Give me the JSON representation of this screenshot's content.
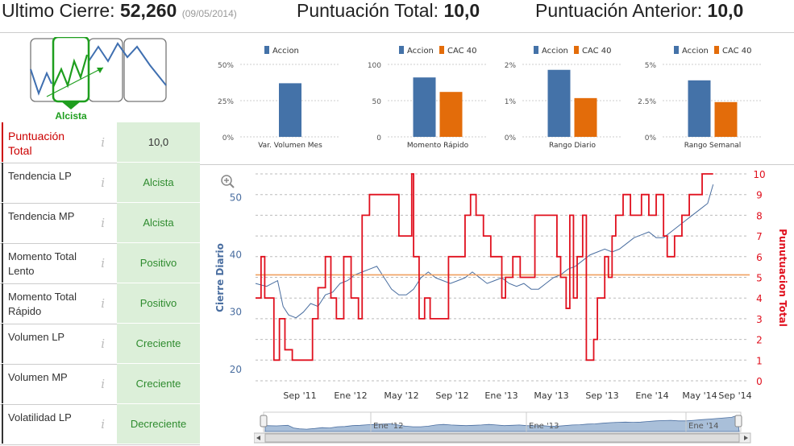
{
  "header": {
    "last_close_label": "Ultimo Cierre:",
    "last_close_value": "52,260",
    "last_close_date": "(09/05/2014)",
    "total_label": "Puntuación Total:",
    "total_value": "10,0",
    "prev_label": "Puntuación Anterior:",
    "prev_value": "10,0"
  },
  "trend_indicator": {
    "label": "Alcista",
    "color": "#1e9e1e"
  },
  "table": [
    {
      "label": "Puntuación Total",
      "value": "10,0"
    },
    {
      "label": "Tendencia LP",
      "value": "Alcista"
    },
    {
      "label": "Tendencia MP",
      "value": "Alcista"
    },
    {
      "label": "Momento Total Lento",
      "value": "Positivo"
    },
    {
      "label": "Momento Total Rápido",
      "value": "Positivo"
    },
    {
      "label": "Volumen LP",
      "value": "Creciente"
    },
    {
      "label": "Volumen MP",
      "value": "Creciente"
    },
    {
      "label": "Volatilidad LP",
      "value": "Decreciente"
    }
  ],
  "info_icon": "i",
  "colors": {
    "accion": "#4472a8",
    "cac40": "#e36c0a",
    "score": "#e0101e",
    "close": "#4a6ea0",
    "ref": "#f0a060",
    "green": "#2e8b2e"
  },
  "chart_data": [
    {
      "type": "bar",
      "title": "Var. Volumen Mes",
      "series": [
        {
          "name": "Accion",
          "values": [
            37
          ]
        }
      ],
      "ylim": [
        0,
        50
      ],
      "yticks": [
        "0%",
        "25%",
        "50%"
      ]
    },
    {
      "type": "bar",
      "title": "Momento Rápido",
      "series": [
        {
          "name": "Accion",
          "values": [
            82
          ]
        },
        {
          "name": "CAC 40",
          "values": [
            62
          ]
        }
      ],
      "ylim": [
        0,
        100
      ],
      "yticks": [
        "0",
        "50",
        "100"
      ]
    },
    {
      "type": "bar",
      "title": "Rango Diario",
      "series": [
        {
          "name": "Accion",
          "values": [
            1.85
          ]
        },
        {
          "name": "CAC 40",
          "values": [
            1.07
          ]
        }
      ],
      "ylim": [
        0,
        2
      ],
      "yticks": [
        "0%",
        "1%",
        "2%"
      ]
    },
    {
      "type": "bar",
      "title": "Rango Semanal",
      "series": [
        {
          "name": "Accion",
          "values": [
            3.9
          ]
        },
        {
          "name": "CAC 40",
          "values": [
            2.4
          ]
        }
      ],
      "ylim": [
        0,
        5
      ],
      "yticks": [
        "0%",
        "2.5%",
        "5%"
      ]
    },
    {
      "type": "line",
      "ylabel": "Cierre Diario",
      "y2label": "Punutuacion Total",
      "ylim": [
        18,
        54
      ],
      "y2lim": [
        0,
        10
      ],
      "yticks": [
        "20",
        "30",
        "40",
        "50"
      ],
      "y2ticks": [
        "0",
        "1",
        "2",
        "3",
        "4",
        "5",
        "6",
        "7",
        "8",
        "9",
        "10"
      ],
      "xticks": [
        "Sep '11",
        "Ene '12",
        "May '12",
        "Sep '12",
        "Ene '13",
        "May '13",
        "Sep '13",
        "Ene '14",
        "May '14",
        "Sep '14"
      ],
      "xrange": [
        "2011-07",
        "2014-09"
      ],
      "reference_level": 36.5,
      "series": [
        {
          "name": "Cierre Diario",
          "points": [
            [
              0,
              35
            ],
            [
              0.6,
              34.5
            ],
            [
              1.2,
              35.5
            ],
            [
              1.5,
              31
            ],
            [
              1.8,
              29.5
            ],
            [
              2.2,
              29
            ],
            [
              2.6,
              30
            ],
            [
              3,
              31.5
            ],
            [
              3.4,
              31
            ],
            [
              3.8,
              33
            ],
            [
              4.2,
              33.5
            ],
            [
              4.6,
              35
            ],
            [
              5,
              35.5
            ],
            [
              5.4,
              36.5
            ],
            [
              5.8,
              37
            ],
            [
              6.2,
              37.5
            ],
            [
              6.6,
              38
            ],
            [
              7,
              36
            ],
            [
              7.4,
              34
            ],
            [
              7.8,
              33
            ],
            [
              8.2,
              33
            ],
            [
              8.6,
              34
            ],
            [
              9,
              36
            ],
            [
              9.4,
              37
            ],
            [
              9.8,
              36
            ],
            [
              10.2,
              35.5
            ],
            [
              10.6,
              35
            ],
            [
              11,
              35.5
            ],
            [
              11.4,
              36
            ],
            [
              11.8,
              37
            ],
            [
              12.2,
              36
            ],
            [
              12.6,
              35
            ],
            [
              13,
              35.5
            ],
            [
              13.4,
              36
            ],
            [
              13.8,
              35
            ],
            [
              14.2,
              34.5
            ],
            [
              14.6,
              35
            ],
            [
              15,
              34
            ],
            [
              15.4,
              34
            ],
            [
              15.8,
              35
            ],
            [
              16.2,
              36
            ],
            [
              16.6,
              36.5
            ],
            [
              17,
              37.5
            ],
            [
              17.4,
              38
            ],
            [
              17.8,
              39
            ],
            [
              18.2,
              40
            ],
            [
              18.6,
              40.5
            ],
            [
              19,
              41
            ],
            [
              19.4,
              40.5
            ],
            [
              19.8,
              41
            ],
            [
              20.2,
              42
            ],
            [
              20.6,
              43
            ],
            [
              21,
              43.5
            ],
            [
              21.4,
              44
            ],
            [
              21.8,
              43
            ],
            [
              22.2,
              43
            ],
            [
              22.6,
              44
            ],
            [
              23,
              45
            ],
            [
              23.4,
              46
            ],
            [
              23.8,
              47
            ],
            [
              24.2,
              48
            ],
            [
              24.6,
              49
            ],
            [
              24.9,
              52.3
            ]
          ]
        },
        {
          "name": "Puntuacion Total",
          "steps": [
            [
              0,
              4
            ],
            [
              0.3,
              6
            ],
            [
              0.5,
              4
            ],
            [
              1,
              1
            ],
            [
              1.3,
              3
            ],
            [
              1.6,
              1.5
            ],
            [
              2,
              1
            ],
            [
              3.1,
              3
            ],
            [
              3.4,
              4.5
            ],
            [
              3.8,
              6
            ],
            [
              4.1,
              4
            ],
            [
              4.4,
              3
            ],
            [
              4.8,
              6
            ],
            [
              5.2,
              4
            ],
            [
              5.6,
              3
            ],
            [
              5.8,
              8
            ],
            [
              6.2,
              9
            ],
            [
              7.8,
              7
            ],
            [
              8.5,
              10
            ],
            [
              8.6,
              6
            ],
            [
              8.9,
              3
            ],
            [
              9.2,
              4
            ],
            [
              9.5,
              3
            ],
            [
              10.5,
              6
            ],
            [
              11,
              6
            ],
            [
              11.4,
              8
            ],
            [
              11.7,
              9
            ],
            [
              12,
              8
            ],
            [
              12.4,
              7
            ],
            [
              12.8,
              6
            ],
            [
              13,
              6
            ],
            [
              13.4,
              4
            ],
            [
              13.6,
              5
            ],
            [
              14,
              6
            ],
            [
              14.4,
              5
            ],
            [
              14.8,
              5
            ],
            [
              15.2,
              8
            ],
            [
              16,
              8
            ],
            [
              16.4,
              6
            ],
            [
              16.6,
              5
            ],
            [
              16.9,
              3.5
            ],
            [
              17.1,
              8
            ],
            [
              17.3,
              4
            ],
            [
              17.5,
              6
            ],
            [
              17.8,
              8
            ],
            [
              18,
              1
            ],
            [
              18.4,
              2
            ],
            [
              18.6,
              4
            ],
            [
              19,
              6
            ],
            [
              19.2,
              5
            ],
            [
              19.4,
              7
            ],
            [
              19.6,
              8
            ],
            [
              20,
              9
            ],
            [
              20.4,
              8
            ],
            [
              21,
              9
            ],
            [
              21.4,
              8
            ],
            [
              21.8,
              9
            ],
            [
              22.2,
              7
            ],
            [
              22.4,
              6
            ],
            [
              22.8,
              7
            ],
            [
              23.2,
              8
            ],
            [
              23.6,
              9
            ],
            [
              24.3,
              10
            ],
            [
              24.9,
              10
            ]
          ]
        }
      ]
    }
  ]
}
